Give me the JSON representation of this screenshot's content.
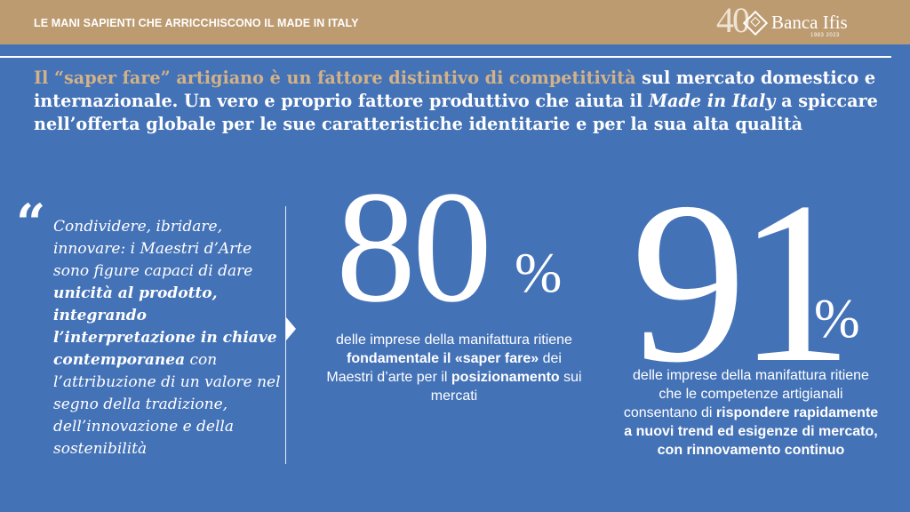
{
  "header": {
    "title": "LE MANI SAPIENTI CHE ARRICCHISCONO IL MADE IN ITALY",
    "logo_number": "40",
    "logo_brand": "Banca Ifis",
    "logo_years": "1983 2023"
  },
  "headline": {
    "highlight": "Il “saper fare” artigiano è un fattore distintivo di competitività",
    "part2": " sul mercato domestico e internazionale. Un vero e proprio fattore produttivo che aiuta il ",
    "italic": "Made in Italy",
    "part3": " a spiccare nell’offerta globale per le sue caratteristiche identitarie e per la sua alta qualità"
  },
  "quote": {
    "mark": "“",
    "t1": "Condividere, ibridare, innovare: i Maestri d’Arte sono figure capaci di dare ",
    "b1": "unicità al prodotto, integrando l’interpretazione in chiave contemporanea",
    "t2": " con l’attribuzione di un valore nel segno della tradizione, dell’innovazione e della sostenibilità"
  },
  "stat1": {
    "value": "80",
    "unit": "%",
    "t1": "delle imprese della manifattura ritiene ",
    "b1": "fondamentale il «saper fare»",
    "t2": " dei Maestri d’arte per il ",
    "b2": "posizionamento",
    "t3": " sui mercati"
  },
  "stat2": {
    "value": "91",
    "unit": "%",
    "t1": "delle imprese della manifattura ritiene che le competenze artigianali consentano di ",
    "b1": "rispondere rapidamente a nuovi trend ed esigenze di mercato, con rinnovamento continuo"
  }
}
